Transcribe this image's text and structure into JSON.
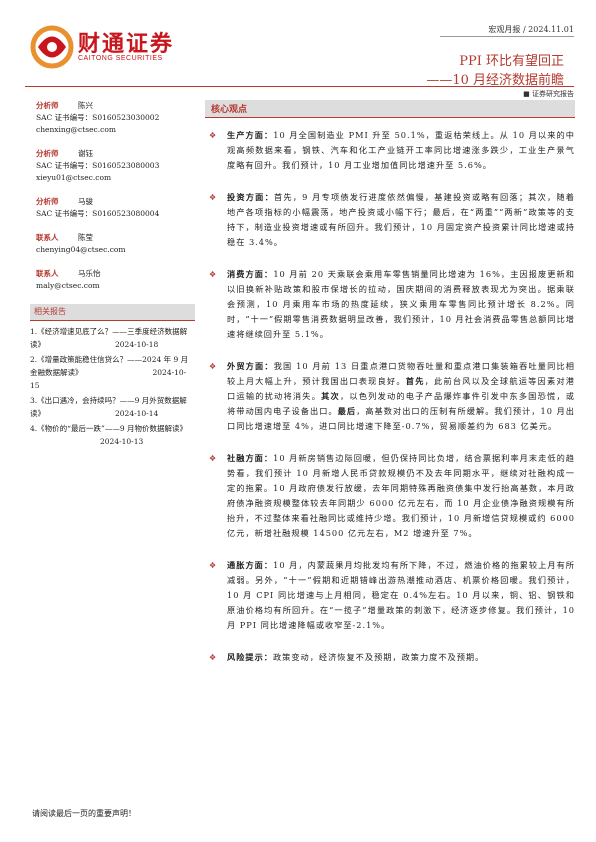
{
  "header": {
    "logo_cn": "财通证券",
    "logo_en": "CAITONG SECURITIES",
    "report_type": "宏观月报 / 2024.11.01",
    "title": "PPI 环比有望回正",
    "subtitle": "——10 月经济数据前瞻",
    "tag": "证券研究报告"
  },
  "analysts": [
    {
      "role": "分析师",
      "name": "陈兴",
      "cert": "SAC 证书编号：S0160523030002",
      "email": "chenxing@ctsec.com"
    },
    {
      "role": "分析师",
      "name": "谢钰",
      "cert": "SAC 证书编号：S0160523080003",
      "email": "xieyu01@ctsec.com"
    },
    {
      "role": "分析师",
      "name": "马骏",
      "cert": "SAC 证书编号：S0160523080004"
    },
    {
      "role": "联系人",
      "name": "陈莹",
      "email": "chenying04@ctsec.com"
    },
    {
      "role": "联系人",
      "name": "马乐怡",
      "email": "maly@ctsec.com"
    }
  ],
  "related": {
    "title": "相关报告",
    "items": [
      {
        "text": "1.《经济增速见底了么？——三季度经济数据解读》",
        "date": "2024-10-18"
      },
      {
        "text": "2.《增量政策能稳住信贷么？——2024 年 9 月金融数据解读》",
        "date": "2024-10-15"
      },
      {
        "text": "3.《出口遇冷，会持续吗？——9 月外贸数据解读》",
        "date": "2024-10-14"
      },
      {
        "text": "4.《物价的“最后一跌”——9 月物价数据解读》",
        "date": "2024-10-13"
      }
    ]
  },
  "core": {
    "title": "核心观点",
    "points": [
      {
        "lead": "生产方面：",
        "parts": [
          {
            "text": "10 月全国制造业 PMI 升至 50.1%，重返枯荣线上。从 10 月以来的中观高频数据来看，钢铁、汽车和化工产业链开工率同比增速涨多跌少，工业生产景气度略有回升。我们预计，10 月工业增加值同比增速升至 5.6%。"
          }
        ]
      },
      {
        "lead": "投资方面：",
        "parts": [
          {
            "text": "首先，9 月专项债发行进度依然偏慢，基建投资或略有回落；其次，随着地产各项指标的小幅震荡，地产投资或小幅下行；最后，在“两重”“两新”政策等的支持下，制造业投资增速或有所回升。我们预计，10 月固定资产投资累计同比增速或持稳在 3.4%。"
          }
        ]
      },
      {
        "lead": "消费方面：",
        "parts": [
          {
            "text": "10 月前 20 天乘联会乘用车零售销量同比增速为 16%，主因报废更新和以旧换新补贴政策和股市保增长的拉动，国庆期间的消费释放表现尤为突出。据乘联会预测，10 月乘用车市场的热度延续，狭义乘用车零售同比预计增长 8.2%。同时，“十一”假期零售消费数据明显改善，我们预计，10 月社会消费品零售总额同比增速将继续回升至 5.1%。"
          }
        ]
      },
      {
        "lead": "外贸方面：",
        "parts": [
          {
            "text": "我国 10 月前 13 日重点港口货物吞吐量和重点港口集装箱吞吐量同比相较上月大幅上升，预计我国出口表现良好。"
          },
          {
            "text": "首先",
            "bold": true
          },
          {
            "text": "，此前台风以及全球航运等因素对港口运输的扰动将消失。"
          },
          {
            "text": "其次",
            "bold": true
          },
          {
            "text": "，以色列发动的电子产品爆炸事件引发中东多国恐慌，或将带动国内电子设备出口。"
          },
          {
            "text": "最后",
            "bold": true
          },
          {
            "text": "，高基数对出口的压制有所缓解。我们预计，10 月出口同比增速增至 4%，进口同比增速下降至-0.7%，贸易顺差约为 683 亿美元。"
          }
        ]
      },
      {
        "lead": "社融方面：",
        "parts": [
          {
            "text": "10 月新房销售边际回暖，但仍保持同比负增，结合票据利率月末走低的趋势看，我们预计 10 月新增人民币贷款规模仍不及去年同期水平，继续对社融构成一定的拖累。10 月政府债发行放缓，去年同期特殊再融资债集中发行抬高基数，本月政府债净融资规模整体较去年同期少 6000 亿元左右，而 10 月企业债净融资规模有所抬升，不过整体来看社融同比或维持少增。我们预计，10 月新增信贷规模或约 6000 亿元，新增社融规模 14500 亿元左右，M2 增速升至 7%。"
          }
        ]
      },
      {
        "lead": "通胀方面：",
        "parts": [
          {
            "text": "10 月，内蒙蔬果月均批发均有所下降，不过，燃油价格的拖累较上月有所减弱。另外，“十一”假期和近期错峰出游热潮推动酒店、机票价格回暖。我们预计，10 月 CPI 同比增速与上月相同，稳定在 0.4%左右。10 月以来，铜、铝、钢铁和原油价格均有所回升。在“一揽子”增量政策的刺激下，经济逐步修复。我们预计，10 月 PPI 同比增速降幅或收窄至-2.1%。"
          }
        ]
      },
      {
        "lead": "风险提示：",
        "parts": [
          {
            "text": "政策变动，经济恢复不及预期，政策力度不及预期。"
          }
        ]
      }
    ]
  },
  "footer": {
    "notice": "请阅读最后一页的重要声明！"
  }
}
